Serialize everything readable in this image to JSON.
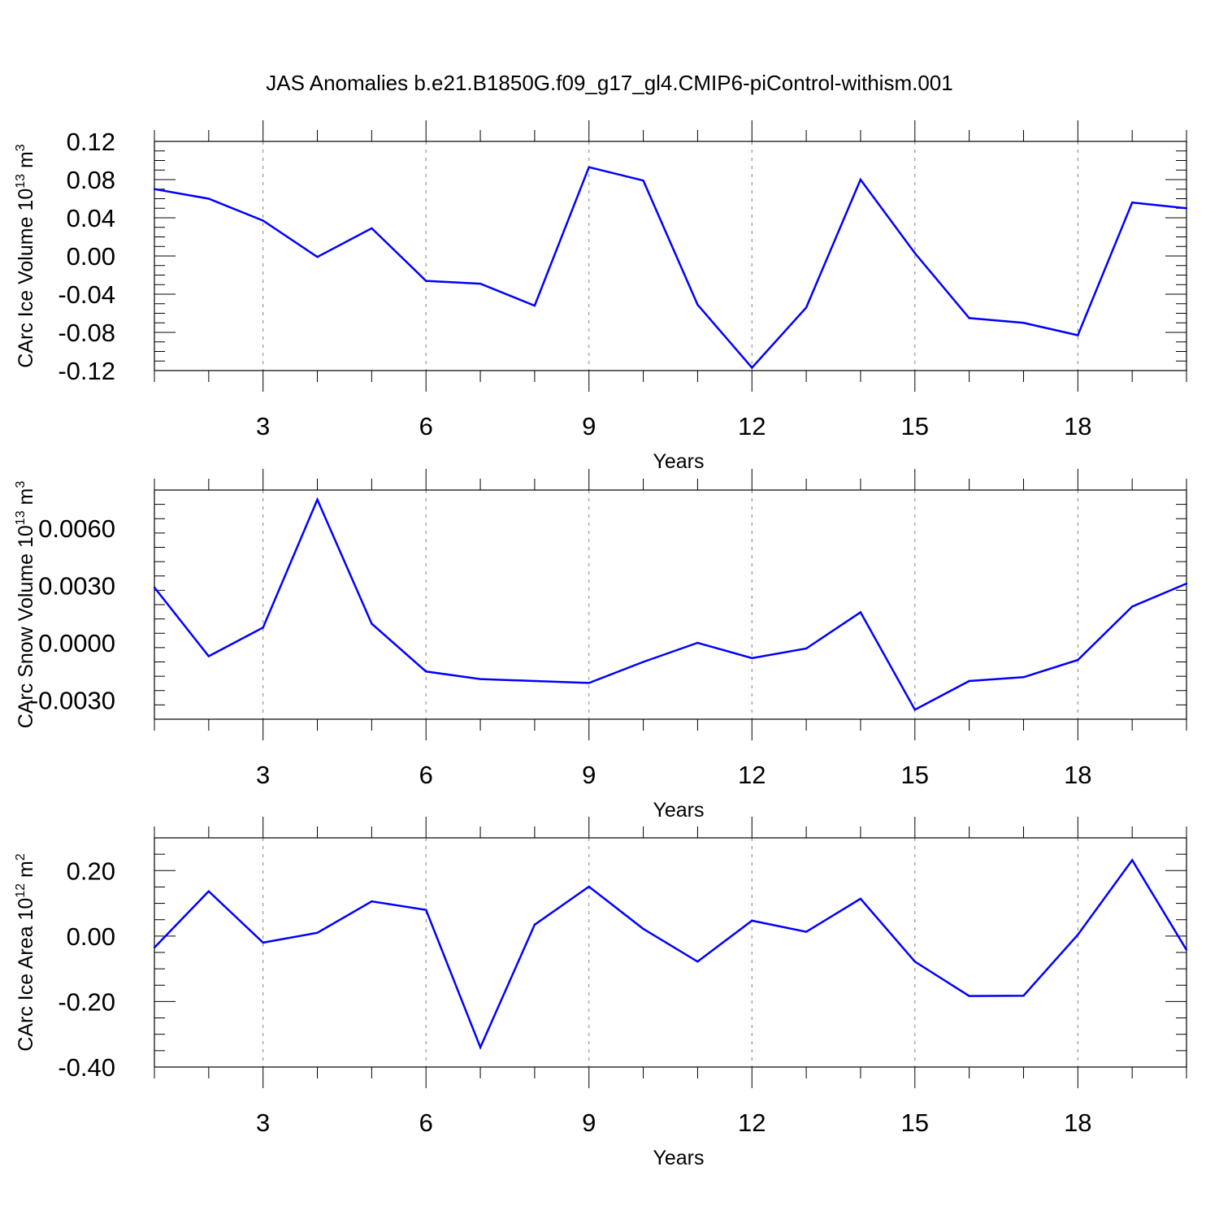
{
  "title": "JAS Anomalies b.e21.B1850G.f09_g17_gl4.CMIP6-piControl-withism.001",
  "colors": {
    "line": "#0000ff",
    "axis": "#000000",
    "grid": "#808080"
  },
  "chart_data": [
    {
      "type": "line",
      "xlabel": "Years",
      "ylabel": {
        "text": "CArc Ice Volume 10",
        "exp": "13",
        "unit": " m",
        "unit_exp": "3"
      },
      "xlim": [
        1,
        20
      ],
      "ylim": [
        -0.12,
        0.12
      ],
      "xticks": [
        3,
        6,
        9,
        12,
        15,
        18
      ],
      "yticks": [
        -0.12,
        -0.08,
        -0.04,
        0.0,
        0.04,
        0.08,
        0.12
      ],
      "ytick_labels": [
        "-0.12",
        "-0.08",
        "-0.04",
        "0.00",
        "0.04",
        "0.08",
        "0.12"
      ],
      "x": [
        1,
        2,
        3,
        4,
        5,
        6,
        7,
        8,
        9,
        10,
        11,
        12,
        13,
        14,
        15,
        16,
        17,
        18,
        19,
        20
      ],
      "values": [
        0.07,
        0.06,
        0.037,
        -0.001,
        0.029,
        -0.026,
        -0.029,
        -0.052,
        0.093,
        0.079,
        -0.051,
        -0.117,
        -0.054,
        0.08,
        0.003,
        -0.065,
        -0.07,
        -0.083,
        0.056,
        0.05
      ]
    },
    {
      "type": "line",
      "xlabel": "Years",
      "ylabel": {
        "text": "CArc Snow Volume 10",
        "exp": "13",
        "unit": " m",
        "unit_exp": "3"
      },
      "xlim": [
        1,
        20
      ],
      "ylim": [
        -0.004,
        0.008
      ],
      "xticks": [
        3,
        6,
        9,
        12,
        15,
        18
      ],
      "yticks": [
        -0.003,
        0.0,
        0.003,
        0.006
      ],
      "ytick_labels": [
        "-0.0030",
        "0.0000",
        "0.0030",
        "0.0060"
      ],
      "x": [
        1,
        2,
        3,
        4,
        5,
        6,
        7,
        8,
        9,
        10,
        11,
        12,
        13,
        14,
        15,
        16,
        17,
        18,
        19,
        20
      ],
      "values": [
        0.0029,
        -0.0007,
        0.0008,
        0.0075,
        0.001,
        -0.0015,
        -0.0019,
        -0.002,
        -0.0021,
        -0.001,
        0.0,
        -0.0008,
        -0.0003,
        0.0016,
        -0.0035,
        -0.002,
        -0.0018,
        -0.0009,
        0.0019,
        0.0031
      ]
    },
    {
      "type": "line",
      "xlabel": "Years",
      "ylabel": {
        "text": "CArc Ice Area 10",
        "exp": "12",
        "unit": " m",
        "unit_exp": "2"
      },
      "xlim": [
        1,
        20
      ],
      "ylim": [
        -0.4,
        0.3
      ],
      "xticks": [
        3,
        6,
        9,
        12,
        15,
        18
      ],
      "yticks": [
        -0.4,
        -0.2,
        0.0,
        0.2
      ],
      "ytick_labels": [
        "-0.40",
        "-0.20",
        "0.00",
        "0.20"
      ],
      "x": [
        1,
        2,
        3,
        4,
        5,
        6,
        7,
        8,
        9,
        10,
        11,
        12,
        13,
        14,
        15,
        16,
        17,
        18,
        19,
        20
      ],
      "values": [
        -0.035,
        0.137,
        -0.02,
        0.01,
        0.106,
        0.08,
        -0.34,
        0.035,
        0.151,
        0.022,
        -0.078,
        0.047,
        0.013,
        0.114,
        -0.078,
        -0.183,
        -0.182,
        0.004,
        0.232,
        -0.042
      ]
    }
  ]
}
